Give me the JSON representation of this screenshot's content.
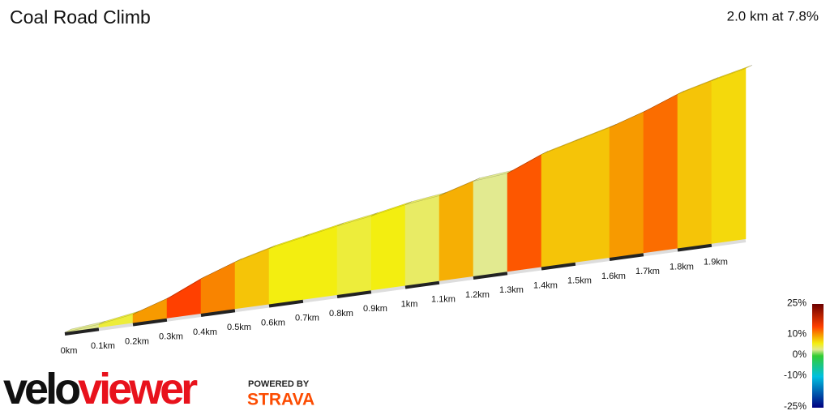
{
  "chart_data": {
    "type": "climb-profile",
    "title": "Coal Road Climb",
    "subtitle": "2.0 km at 7.8%",
    "xlim": [
      0,
      2.0
    ],
    "xticks": [
      {
        "value": 0,
        "label": "0km"
      },
      {
        "value": 0.1,
        "label": "0.1km"
      },
      {
        "value": 0.2,
        "label": "0.2km"
      },
      {
        "value": 0.3,
        "label": "0.3km"
      },
      {
        "value": 0.4,
        "label": "0.4km"
      },
      {
        "value": 0.5,
        "label": "0.5km"
      },
      {
        "value": 0.6,
        "label": "0.6km"
      },
      {
        "value": 0.7,
        "label": "0.7km"
      },
      {
        "value": 0.8,
        "label": "0.8km"
      },
      {
        "value": 0.9,
        "label": "0.9km"
      },
      {
        "value": 1,
        "label": "1km"
      },
      {
        "value": 1.1,
        "label": "1.1km"
      },
      {
        "value": 1.2,
        "label": "1.2km"
      },
      {
        "value": 1.3,
        "label": "1.3km"
      },
      {
        "value": 1.4,
        "label": "1.4km"
      },
      {
        "value": 1.5,
        "label": "1.5km"
      },
      {
        "value": 1.6,
        "label": "1.6km"
      },
      {
        "value": 1.7,
        "label": "1.7km"
      },
      {
        "value": 1.8,
        "label": "1.8km"
      },
      {
        "value": 1.9,
        "label": "1.9km"
      }
    ],
    "segment_length": 0.1,
    "gradients": [
      3,
      5,
      10,
      14,
      11,
      8,
      6,
      6,
      5,
      6,
      4,
      9,
      3,
      13,
      8,
      8,
      10,
      12,
      8,
      7
    ],
    "colorbar": {
      "ticks": [
        {
          "value": 25,
          "label": "25%"
        },
        {
          "value": 10,
          "label": "10%"
        },
        {
          "value": 0,
          "label": "0%"
        },
        {
          "value": -10,
          "label": "-10%"
        },
        {
          "value": -25,
          "label": "-25%"
        }
      ],
      "stops": [
        {
          "value": 25,
          "color": "#6b0000"
        },
        {
          "value": 14,
          "color": "#ff4000"
        },
        {
          "value": 10,
          "color": "#f79a00"
        },
        {
          "value": 6,
          "color": "#f3ee10"
        },
        {
          "value": 3,
          "color": "#e2ea90"
        },
        {
          "value": 0,
          "color": "#33cc33"
        },
        {
          "value": -10,
          "color": "#00c0e0"
        },
        {
          "value": -25,
          "color": "#000080"
        }
      ]
    }
  },
  "branding": {
    "velo": "velo",
    "viewer": "viewer",
    "powered": "POWERED BY",
    "strava": "STRAVA"
  }
}
